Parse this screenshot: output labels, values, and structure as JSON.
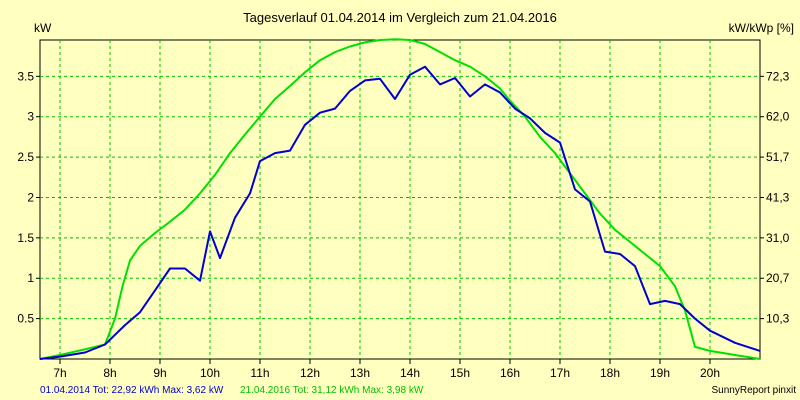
{
  "chart_data": {
    "type": "line",
    "title": "Tagesverlauf 01.04.2014 im Vergleich zum 21.04.2016",
    "ylabel_left": "kW",
    "ylabel_right": "kW/kWp [%]",
    "x_ticks": [
      "7h",
      "8h",
      "9h",
      "10h",
      "11h",
      "12h",
      "13h",
      "14h",
      "15h",
      "16h",
      "17h",
      "18h",
      "19h",
      "20h"
    ],
    "xlim": [
      6.6,
      21.0
    ],
    "y_ticks_left": [
      "0.5",
      "1",
      "1.5",
      "2",
      "2.5",
      "3",
      "3.5"
    ],
    "y_ticks_left_values": [
      0.5,
      1,
      1.5,
      2,
      2.5,
      3,
      3.5
    ],
    "ylim": [
      0,
      3.95
    ],
    "y_ticks_right": [
      "10,3",
      "20,7",
      "31,0",
      "41,3",
      "51,7",
      "62,0",
      "72,3"
    ],
    "grid": true,
    "background_color": "#ffffc0",
    "grid_color": "#00c000",
    "series": [
      {
        "name": "21.04.2016",
        "color": "#00e000",
        "x": [
          6.6,
          7.0,
          7.5,
          7.9,
          8.1,
          8.25,
          8.4,
          8.6,
          8.9,
          9.2,
          9.5,
          9.8,
          10.1,
          10.4,
          10.7,
          11.0,
          11.3,
          11.6,
          11.9,
          12.2,
          12.5,
          12.8,
          13.1,
          13.4,
          13.7,
          14.0,
          14.3,
          14.6,
          14.9,
          15.2,
          15.5,
          15.8,
          16.0,
          16.3,
          16.6,
          16.9,
          17.2,
          17.5,
          17.8,
          18.1,
          18.4,
          18.7,
          19.0,
          19.3,
          19.5,
          19.7,
          20.0,
          20.5,
          21.0
        ],
        "values": [
          0,
          0.05,
          0.12,
          0.18,
          0.5,
          0.9,
          1.22,
          1.4,
          1.56,
          1.7,
          1.85,
          2.05,
          2.28,
          2.55,
          2.78,
          3.0,
          3.22,
          3.38,
          3.55,
          3.7,
          3.8,
          3.87,
          3.92,
          3.95,
          3.96,
          3.95,
          3.9,
          3.8,
          3.7,
          3.62,
          3.5,
          3.35,
          3.2,
          3.0,
          2.75,
          2.55,
          2.3,
          2.05,
          1.8,
          1.6,
          1.45,
          1.3,
          1.15,
          0.9,
          0.6,
          0.15,
          0.1,
          0.05,
          0
        ]
      },
      {
        "name": "01.04.2014",
        "color": "#0000d0",
        "x": [
          6.6,
          7.0,
          7.5,
          7.9,
          8.1,
          8.3,
          8.6,
          8.9,
          9.2,
          9.5,
          9.8,
          10.0,
          10.2,
          10.5,
          10.8,
          11.0,
          11.3,
          11.6,
          11.9,
          12.2,
          12.5,
          12.8,
          13.1,
          13.4,
          13.7,
          14.0,
          14.3,
          14.6,
          14.9,
          15.2,
          15.5,
          15.8,
          16.1,
          16.4,
          16.7,
          17.0,
          17.3,
          17.6,
          17.9,
          18.2,
          18.5,
          18.8,
          19.1,
          19.4,
          19.7,
          20.0,
          20.5,
          21.0
        ],
        "values": [
          0,
          0.03,
          0.08,
          0.18,
          0.3,
          0.42,
          0.58,
          0.85,
          1.12,
          1.12,
          0.97,
          1.58,
          1.25,
          1.75,
          2.05,
          2.45,
          2.55,
          2.58,
          2.9,
          3.05,
          3.1,
          3.32,
          3.45,
          3.47,
          3.22,
          3.52,
          3.62,
          3.4,
          3.48,
          3.25,
          3.4,
          3.3,
          3.1,
          2.98,
          2.8,
          2.68,
          2.1,
          1.95,
          1.33,
          1.3,
          1.15,
          0.68,
          0.72,
          0.68,
          0.5,
          0.35,
          0.2,
          0.1
        ]
      }
    ]
  },
  "footer": {
    "series1_text": "01.04.2014 Tot: 22,92 kWh Max: 3,62 kW",
    "series2_text": "21.04.2016 Tot: 31,12 kWh Max: 3,98 kW",
    "credit": "SunnyReport pinxit"
  }
}
